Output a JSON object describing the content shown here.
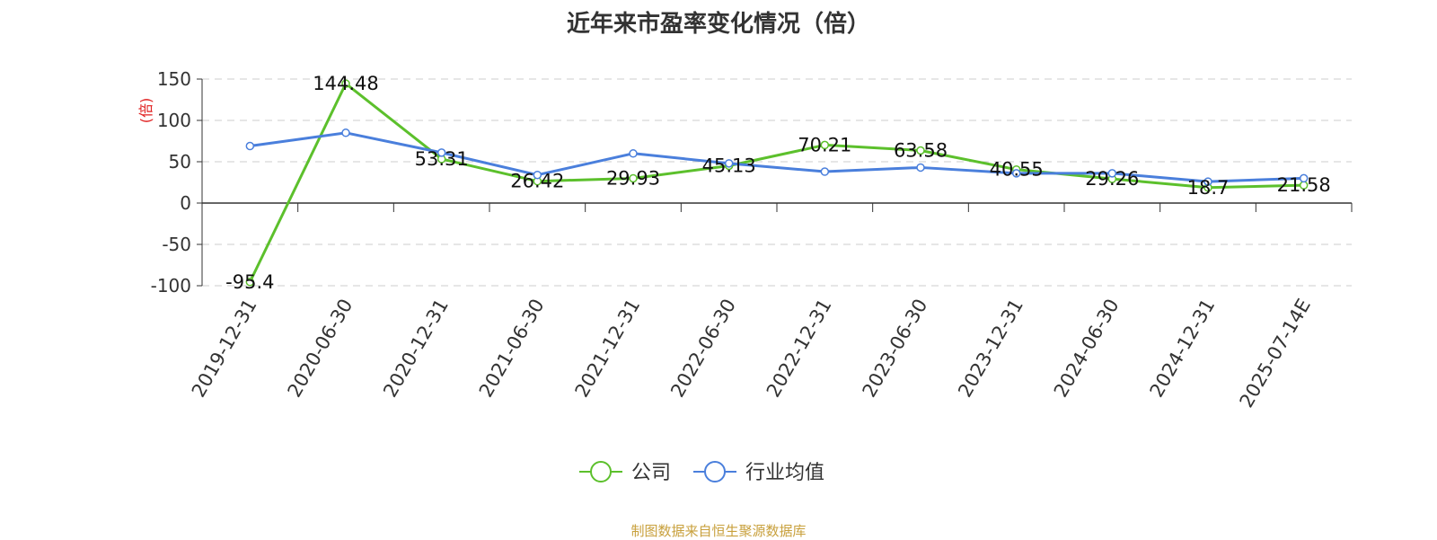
{
  "chart_data": {
    "type": "line",
    "title": "近年来市盈率变化情况（倍）",
    "ylabel": "(倍)",
    "xlabel": "",
    "ylim": [
      -100,
      150
    ],
    "yticks": [
      150,
      100,
      50,
      0,
      -50,
      -100
    ],
    "grid": true,
    "legend_position": "bottom-center",
    "categories": [
      "2019-12-31",
      "2020-06-30",
      "2020-12-31",
      "2021-06-30",
      "2021-12-31",
      "2022-06-30",
      "2022-12-31",
      "2023-06-30",
      "2023-12-31",
      "2024-06-30",
      "2024-12-31",
      "2025-07-14E"
    ],
    "series": [
      {
        "name": "公司",
        "color": "#5cc02c",
        "values": [
          -95.4,
          144.48,
          53.31,
          26.42,
          29.93,
          45.13,
          70.21,
          63.58,
          40.55,
          29.26,
          18.7,
          21.58
        ],
        "data_labels": [
          "-95.4",
          "144.48",
          "53.31",
          "26.42",
          "29.93",
          "45.13",
          "70.21",
          "63.58",
          "40.55",
          "29.26",
          "18.7",
          "21.58"
        ]
      },
      {
        "name": "行业均值",
        "color": "#4a7fdc",
        "values": [
          69,
          85,
          61,
          34,
          60,
          48,
          38,
          43,
          36,
          36,
          26,
          30
        ]
      }
    ]
  },
  "source_note": "制图数据来自恒生聚源数据库"
}
